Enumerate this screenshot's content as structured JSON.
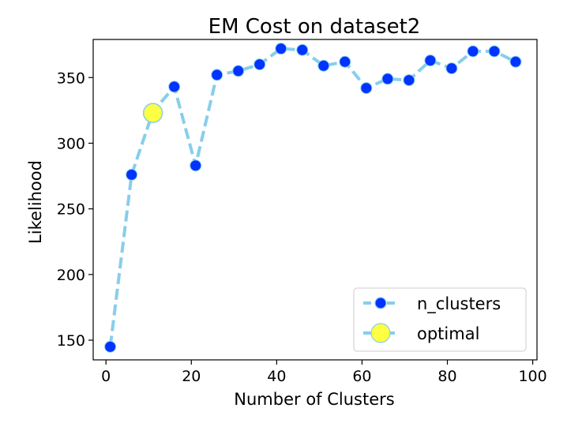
{
  "chart_data": {
    "type": "line",
    "title": "EM Cost on dataset2",
    "xlabel": "Number of Clusters",
    "ylabel": "Likelihood",
    "xlim": [
      -3,
      101
    ],
    "ylim": [
      135,
      379
    ],
    "xticks": [
      0,
      20,
      40,
      60,
      80,
      100
    ],
    "yticks": [
      150,
      200,
      250,
      300,
      350
    ],
    "grid": false,
    "legend_position": "bottom-right",
    "series": [
      {
        "name": "n_clusters",
        "line_color": "#87ceeb",
        "marker_color": "#0033ff",
        "line_style": "dashed",
        "x": [
          1,
          6,
          11,
          16,
          21,
          26,
          31,
          36,
          41,
          46,
          51,
          56,
          61,
          66,
          71,
          76,
          81,
          86,
          91,
          96
        ],
        "y": [
          145,
          276,
          324,
          343,
          283,
          352,
          355,
          360,
          372,
          371,
          359,
          362,
          342,
          349,
          348,
          363,
          357,
          370,
          370,
          362
        ]
      },
      {
        "name": "optimal",
        "line_color": "#87ceeb",
        "marker_color": "#ffff44",
        "x": [
          11
        ],
        "y": [
          323
        ]
      }
    ]
  }
}
